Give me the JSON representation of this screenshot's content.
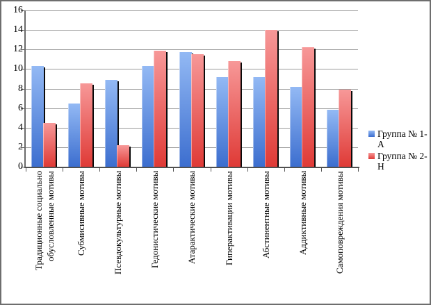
{
  "chart_data": {
    "type": "bar",
    "title": "",
    "xlabel": "",
    "ylabel": "",
    "categories": [
      "Традиционные социально\nобусловленные мотивы",
      "Субмисивные мотивы",
      "Псевдокультурные мотивы",
      "Гедонистические мотивы",
      "Атарактические мотивы",
      "Гиперактивации мотивы",
      "Абстинентные мотивы",
      "Аддиктивные мотивы",
      "Самоповреждения мотивы"
    ],
    "series": [
      {
        "name": "Группа № 1-А",
        "values": [
          10.3,
          6.5,
          8.9,
          10.3,
          11.7,
          9.2,
          9.2,
          8.2,
          5.8
        ],
        "color": "#4f81db",
        "gradient_top": "#93b9f4",
        "gradient_bottom": "#3c6ecf"
      },
      {
        "name": "Группа № 2-Н",
        "values": [
          4.5,
          8.5,
          2.2,
          11.9,
          11.5,
          10.8,
          14.0,
          12.2,
          7.9
        ],
        "color": "#e24444",
        "gradient_top": "#f79898",
        "gradient_bottom": "#df3a36"
      }
    ],
    "ylim": [
      0,
      16
    ],
    "y_ticks": [
      0,
      2,
      4,
      6,
      8,
      10,
      12,
      14,
      16
    ],
    "grid": true,
    "legend_position": "right",
    "bar_shadow_color": "#0a0a0a",
    "gridline_color": "#9a9a9a"
  }
}
